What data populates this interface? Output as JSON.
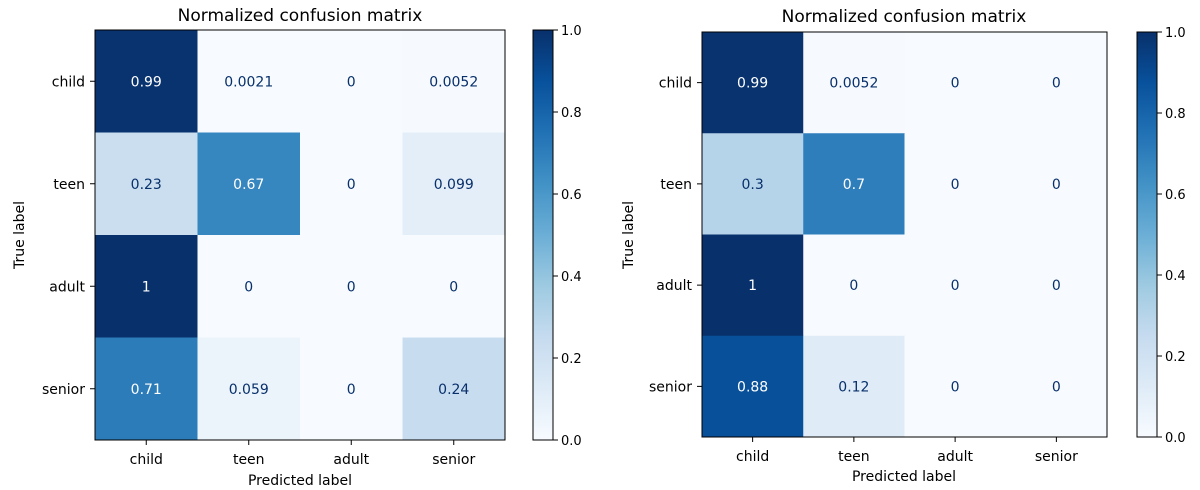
{
  "colormap": {
    "name": "Blues",
    "stops": [
      "#f7fbff",
      "#deebf7",
      "#c6dbef",
      "#9ecae1",
      "#6baed6",
      "#4292c6",
      "#2171b5",
      "#08519c",
      "#08306b"
    ],
    "text_light": "#ffffff",
    "text_dark": "#08306b"
  },
  "chart_data": [
    {
      "type": "heatmap",
      "title": "Normalized confusion matrix",
      "xlabel": "Predicted label",
      "ylabel": "True label",
      "x_categories": [
        "child",
        "teen",
        "adult",
        "senior"
      ],
      "y_categories": [
        "child",
        "teen",
        "adult",
        "senior"
      ],
      "values": [
        [
          0.99,
          0.0021,
          0,
          0.0052
        ],
        [
          0.23,
          0.67,
          0,
          0.099
        ],
        [
          1,
          0,
          0,
          0
        ],
        [
          0.71,
          0.059,
          0,
          0.24
        ]
      ],
      "labels": [
        [
          "0.99",
          "0.0021",
          "0",
          "0.0052"
        ],
        [
          "0.23",
          "0.67",
          "0",
          "0.099"
        ],
        [
          "1",
          "0",
          "0",
          "0"
        ],
        [
          "0.71",
          "0.059",
          "0",
          "0.24"
        ]
      ],
      "colorbar": {
        "range": [
          0,
          1
        ],
        "ticks": [
          "0.0",
          "0.2",
          "0.4",
          "0.6",
          "0.8",
          "1.0"
        ]
      }
    },
    {
      "type": "heatmap",
      "title": "Normalized confusion matrix",
      "xlabel": "Predicted label",
      "ylabel": "True label",
      "x_categories": [
        "child",
        "teen",
        "adult",
        "senior"
      ],
      "y_categories": [
        "child",
        "teen",
        "adult",
        "senior"
      ],
      "values": [
        [
          0.99,
          0.0052,
          0,
          0
        ],
        [
          0.3,
          0.7,
          0,
          0
        ],
        [
          1,
          0,
          0,
          0
        ],
        [
          0.88,
          0.12,
          0,
          0
        ]
      ],
      "labels": [
        [
          "0.99",
          "0.0052",
          "0",
          "0"
        ],
        [
          "0.3",
          "0.7",
          "0",
          "0"
        ],
        [
          "1",
          "0",
          "0",
          "0"
        ],
        [
          "0.88",
          "0.12",
          "0",
          "0"
        ]
      ],
      "colorbar": {
        "range": [
          0,
          1
        ],
        "ticks": [
          "0.0",
          "0.2",
          "0.4",
          "0.6",
          "0.8",
          "1.0"
        ]
      }
    }
  ]
}
